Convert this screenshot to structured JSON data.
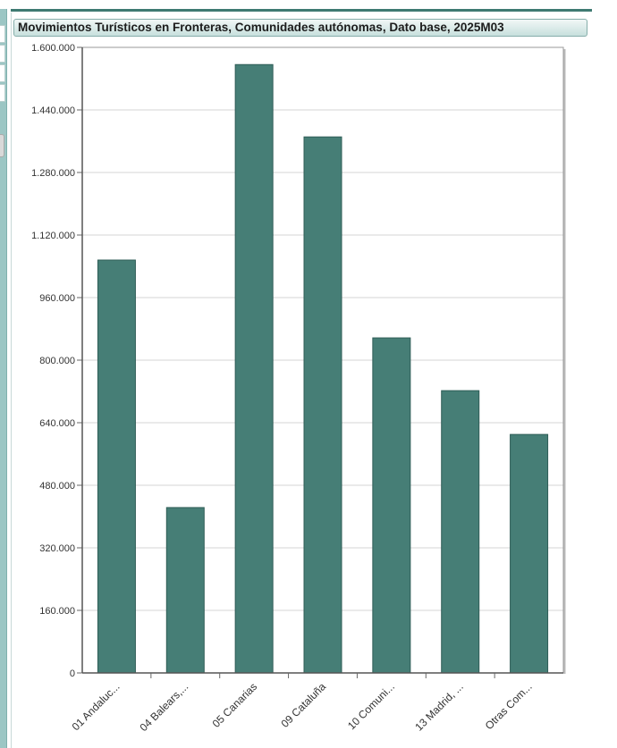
{
  "chart_data": {
    "type": "bar",
    "title": "Movimientos Turísticos en Fronteras, Comunidades autónomas, Dato base, 2025M03",
    "xlabel": "",
    "ylabel": "",
    "categories": [
      "01 Andaluc...",
      "04 Balears,...",
      "05 Canarias",
      "09 Cataluña",
      "10 Comuni...",
      "13 Madrid, ...",
      "Otras Com..."
    ],
    "values": [
      1056000,
      423000,
      1556000,
      1371000,
      857000,
      722000,
      610000
    ],
    "ylim": [
      0,
      1600000
    ],
    "yticks": [
      0,
      160000,
      320000,
      480000,
      640000,
      800000,
      960000,
      1120000,
      1280000,
      1440000,
      1600000
    ],
    "ytick_labels": [
      "0",
      "160.000",
      "320.000",
      "480.000",
      "640.000",
      "800.000",
      "960.000",
      "1.120.000",
      "1.280.000",
      "1.440.000",
      "1.600.000"
    ],
    "grid": true,
    "legend": "none",
    "bar_color": "#467e76",
    "bar_stroke": "#2f5d57"
  }
}
